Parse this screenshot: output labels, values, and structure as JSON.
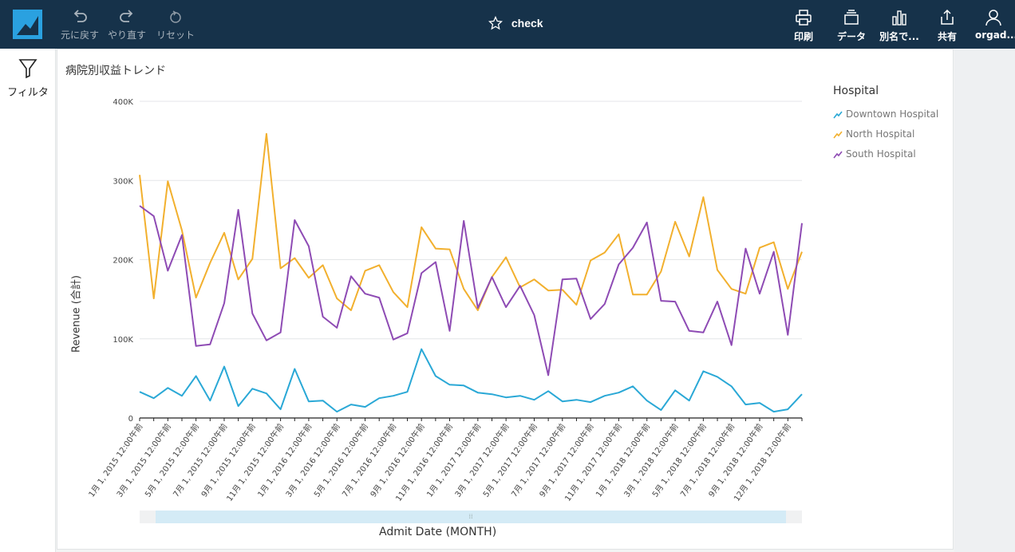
{
  "toolbar": {
    "undo_label": "元に戻す",
    "redo_label": "やり直す",
    "reset_label": "リセット",
    "title": "check",
    "print_label": "印刷",
    "data_label": "データ",
    "saveas_label": "別名で...",
    "share_label": "共有",
    "user_label": "orgad..."
  },
  "left_panel": {
    "filter_label": "フィルタ"
  },
  "visual": {
    "title": "病院別収益トレンド"
  },
  "legend": {
    "title": "Hospital",
    "items": [
      "Downtown Hospital",
      "North Hospital",
      "South Hospital"
    ]
  },
  "colors": {
    "topbar": "#16324a",
    "downtown": "#2aa8d6",
    "north": "#f2b02e",
    "south": "#8e4bb4",
    "scroll_thumb": "#d4ebf6"
  },
  "chart_data": {
    "type": "line",
    "title": "病院別収益トレンド",
    "xlabel": "Admit Date (MONTH)",
    "ylabel": "Revenue (合計)",
    "ylim": [
      0,
      400000
    ],
    "yticks": [
      "0",
      "100K",
      "200K",
      "300K",
      "400K"
    ],
    "xtick_labels": [
      "1月 1, 2015 12:00午前",
      "3月 1, 2015 12:00午前",
      "5月 1, 2015 12:00午前",
      "7月 1, 2015 12:00午前",
      "9月 1, 2015 12:00午前",
      "11月 1, 2015 12:00午前",
      "1月 1, 2016 12:00午前",
      "3月 1, 2016 12:00午前",
      "5月 1, 2016 12:00午前",
      "7月 1, 2016 12:00午前",
      "9月 1, 2016 12:00午前",
      "11月 1, 2016 12:00午前",
      "1月 1, 2017 12:00午前",
      "3月 1, 2017 12:00午前",
      "5月 1, 2017 12:00午前",
      "7月 1, 2017 12:00午前",
      "9月 1, 2017 12:00午前",
      "11月 1, 2017 12:00午前",
      "1月 1, 2018 12:00午前",
      "3月 1, 2018 12:00午前",
      "5月 1, 2018 12:00午前",
      "7月 1, 2018 12:00午前",
      "9月 1, 2018 12:00午前",
      "12月 1, 2018 12:00午前"
    ],
    "series": [
      {
        "name": "Downtown Hospital",
        "values": [
          33000,
          25000,
          38000,
          28000,
          53000,
          22000,
          65000,
          15000,
          37000,
          31000,
          11000,
          62000,
          21000,
          22000,
          8000,
          17000,
          14000,
          25000,
          28000,
          33000,
          87000,
          53000,
          42000,
          41000,
          32000,
          30000,
          26000,
          28000,
          23000,
          34000,
          21000,
          23000,
          20000,
          28000,
          32000,
          40000,
          22000,
          10000,
          35000,
          22000,
          59000,
          52000,
          40000,
          17000,
          19000,
          8000,
          11000,
          30000
        ]
      },
      {
        "name": "North Hospital",
        "values": [
          307000,
          151000,
          299000,
          237000,
          152000,
          196000,
          234000,
          175000,
          201000,
          359000,
          189000,
          202000,
          177000,
          193000,
          151000,
          136000,
          186000,
          193000,
          159000,
          140000,
          241000,
          214000,
          213000,
          163000,
          136000,
          178000,
          203000,
          165000,
          175000,
          161000,
          162000,
          143000,
          199000,
          209000,
          232000,
          156000,
          156000,
          185000,
          248000,
          204000,
          279000,
          187000,
          163000,
          157000,
          215000,
          222000,
          163000,
          210000
        ]
      },
      {
        "name": "South Hospital",
        "values": [
          268000,
          255000,
          186000,
          231000,
          91000,
          93000,
          145000,
          263000,
          132000,
          98000,
          108000,
          250000,
          217000,
          128000,
          114000,
          179000,
          157000,
          152000,
          99000,
          107000,
          183000,
          197000,
          110000,
          249000,
          139000,
          178000,
          140000,
          167000,
          130000,
          54000,
          175000,
          176000,
          125000,
          144000,
          194000,
          215000,
          247000,
          148000,
          147000,
          110000,
          108000,
          147000,
          92000,
          214000,
          157000,
          210000,
          105000,
          246000
        ]
      }
    ]
  }
}
